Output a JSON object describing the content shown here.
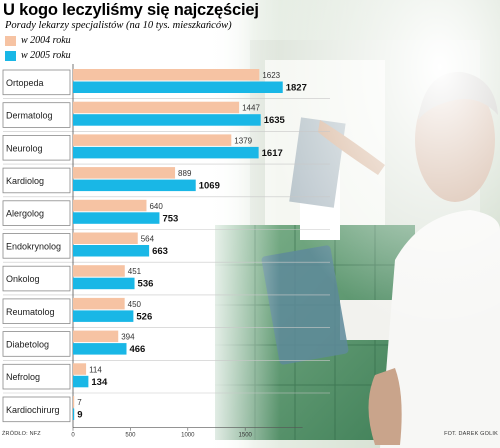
{
  "header": {
    "title": "U kogo leczyliśmy się najczęściej",
    "subtitle": "Porady lekarzy specjalistów (na 10 tys. mieszkańców)"
  },
  "legend": [
    {
      "label": "w 2004 roku",
      "color": "#f6c3a3"
    },
    {
      "label": "w 2005 roku",
      "color": "#19b7e6"
    }
  ],
  "footer": {
    "source": "ŹRÓDŁO: NFZ",
    "credit": "FOT. DAREK GOLIK"
  },
  "chart_data": {
    "type": "bar",
    "orientation": "horizontal",
    "categories": [
      "Ortopeda",
      "Dermatolog",
      "Neurolog",
      "Kardiolog",
      "Alergolog",
      "Endokrynolog",
      "Onkolog",
      "Reumatolog",
      "Diabetolog",
      "Nefrolog",
      "Kardiochirurg"
    ],
    "series": [
      {
        "name": "w 2004 roku",
        "color": "#f6c3a3",
        "values": [
          1623,
          1447,
          1379,
          889,
          640,
          564,
          451,
          450,
          394,
          114,
          7
        ]
      },
      {
        "name": "w 2005 roku",
        "color": "#19b7e6",
        "values": [
          1827,
          1635,
          1617,
          1069,
          753,
          663,
          536,
          526,
          466,
          134,
          9
        ]
      }
    ],
    "x_ticks": [
      0,
      500,
      1000,
      1500
    ],
    "xlim": [
      0,
      2000
    ],
    "title": "U kogo leczyliśmy się najczęściej",
    "subtitle": "Porady lekarzy specjalistów (na 10 tys. mieszkańców)",
    "legend_position": "top-left",
    "grid": false
  }
}
